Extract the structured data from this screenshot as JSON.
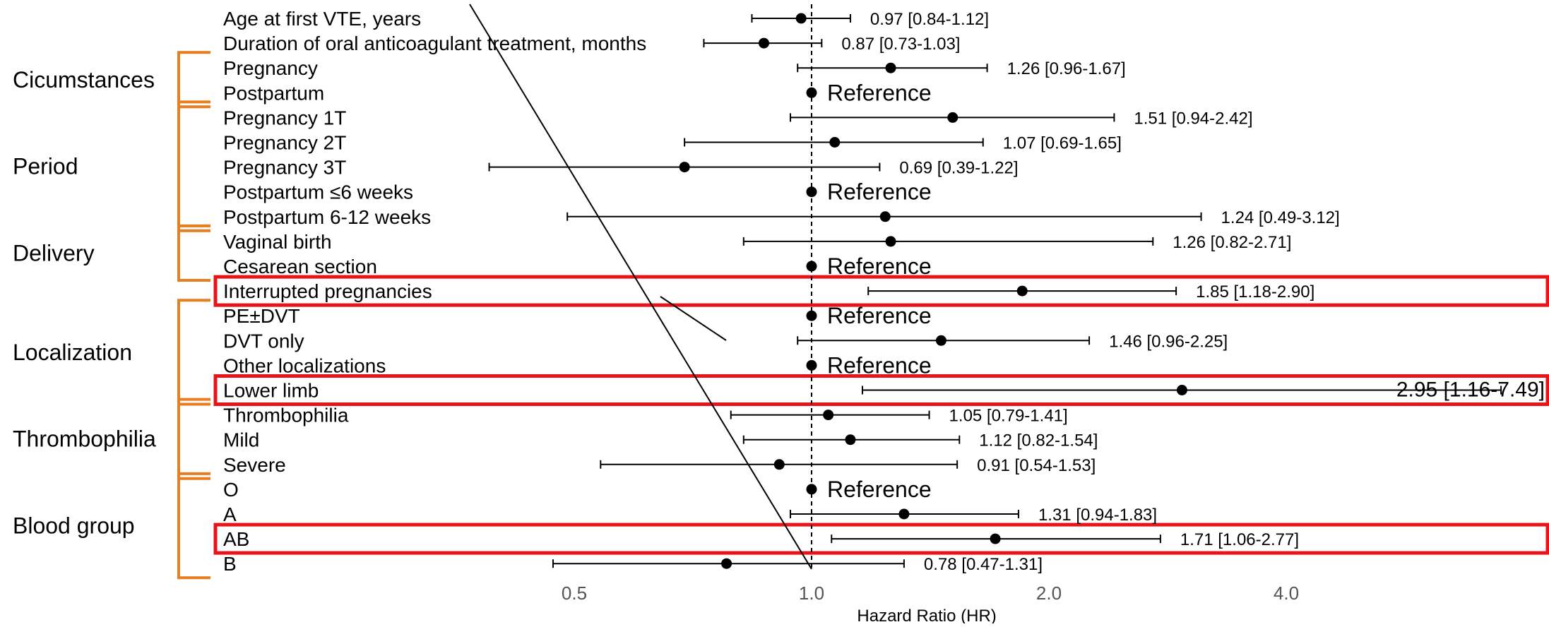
{
  "chart_data": {
    "type": "forest",
    "xlabel": "Hazard Ratio (HR)",
    "x_scale": "log2",
    "xlim": [
      0.3,
      8.5
    ],
    "x_ticks": [
      {
        "value": 0.5,
        "label": "0.5"
      },
      {
        "value": 1.0,
        "label": "1.0"
      },
      {
        "value": 2.0,
        "label": "2.0"
      },
      {
        "value": 4.0,
        "label": "4.0"
      }
    ],
    "reference_line": 1.0,
    "groups": [
      {
        "label": "Cicumstances",
        "first_row": 2,
        "last_row": 3
      },
      {
        "label": "Period",
        "first_row": 4,
        "last_row": 8
      },
      {
        "label": "Delivery",
        "first_row": 9,
        "last_row": 10
      },
      {
        "label": "Localization",
        "first_row": 12,
        "last_row": 15
      },
      {
        "label": "Thrombophilia",
        "first_row": 16,
        "last_row": 18
      },
      {
        "label": "Blood group",
        "first_row": 19,
        "last_row": 22
      }
    ],
    "rows": [
      {
        "label": "Age at first VTE, years",
        "hr": 0.97,
        "lo": 0.84,
        "hi": 1.12,
        "text": "0.97 [0.84-1.12]"
      },
      {
        "label": "Duration of oral anticoagulant treatment, months",
        "hr": 0.87,
        "lo": 0.73,
        "hi": 1.03,
        "text": "0.87 [0.73-1.03]"
      },
      {
        "label": "Pregnancy",
        "hr": 1.26,
        "lo": 0.96,
        "hi": 1.67,
        "text": "1.26 [0.96-1.67]"
      },
      {
        "label": "Postpartum",
        "hr": 1.0,
        "text": "Reference",
        "reference": true
      },
      {
        "label": "Pregnancy 1T",
        "hr": 1.51,
        "lo": 0.94,
        "hi": 2.42,
        "text": "1.51 [0.94-2.42]"
      },
      {
        "label": "Pregnancy 2T",
        "hr": 1.07,
        "lo": 0.69,
        "hi": 1.65,
        "text": "1.07 [0.69-1.65]"
      },
      {
        "label": "Pregnancy 3T",
        "hr": 0.69,
        "lo": 0.39,
        "hi": 1.22,
        "text": "0.69 [0.39-1.22]"
      },
      {
        "label": "Postpartum ≤6 weeks",
        "hr": 1.0,
        "text": "Reference",
        "reference": true
      },
      {
        "label": "Postpartum 6-12 weeks",
        "hr": 1.24,
        "lo": 0.49,
        "hi": 3.12,
        "text": "1.24 [0.49-3.12]"
      },
      {
        "label": "Vaginal birth",
        "hr": 1.26,
        "lo": 0.82,
        "hi": 2.71,
        "text": "1.26 [0.82-2.71]"
      },
      {
        "label": "Cesarean section",
        "hr": 1.0,
        "text": "Reference",
        "reference": true
      },
      {
        "label": "Interrupted pregnancies",
        "hr": 1.85,
        "lo": 1.18,
        "hi": 2.9,
        "text": "1.85 [1.18-2.90]",
        "highlight": true
      },
      {
        "label": "PE±DVT",
        "hr": 1.0,
        "text": "Reference",
        "reference": true
      },
      {
        "label": "DVT only",
        "hr": 1.46,
        "lo": 0.96,
        "hi": 2.25,
        "text": "1.46 [0.96-2.25]"
      },
      {
        "label": "Other localizations",
        "hr": 1.0,
        "text": "Reference",
        "reference": true
      },
      {
        "label": "Lower limb",
        "hr": 2.95,
        "lo": 1.16,
        "hi": 7.49,
        "text": "2.95 [1.16-7.49]",
        "highlight": true
      },
      {
        "label": "Thrombophilia",
        "hr": 1.05,
        "lo": 0.79,
        "hi": 1.41,
        "text": "1.05 [0.79-1.41]"
      },
      {
        "label": "Mild",
        "hr": 1.12,
        "lo": 0.82,
        "hi": 1.54,
        "text": "1.12 [0.82-1.54]"
      },
      {
        "label": "Severe",
        "hr": 0.91,
        "lo": 0.54,
        "hi": 1.53,
        "text": "0.91 [0.54-1.53]"
      },
      {
        "label": "O",
        "hr": 1.0,
        "text": "Reference",
        "reference": true
      },
      {
        "label": "A",
        "hr": 1.31,
        "lo": 0.94,
        "hi": 1.83,
        "text": "1.31 [0.94-1.83]"
      },
      {
        "label": "AB",
        "hr": 1.71,
        "lo": 1.06,
        "hi": 2.77,
        "text": "1.71 [1.06-2.77]",
        "highlight": true
      },
      {
        "label": "B",
        "hr": 0.78,
        "lo": 0.47,
        "hi": 1.31,
        "text": "0.78 [0.47-1.31]"
      }
    ],
    "colors": {
      "bracket": "#e67e22",
      "highlight": "#e8141a",
      "marks": "#000000",
      "reference_line": "#000000"
    }
  }
}
